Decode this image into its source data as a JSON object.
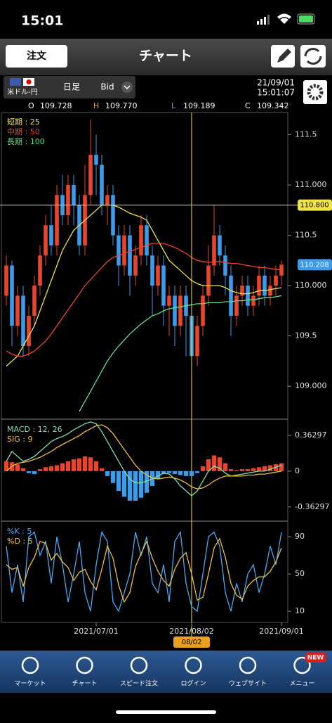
{
  "status_bar": {
    "time": "15:01"
  },
  "header": {
    "order_button": "注文",
    "title": "チャート"
  },
  "instrument": {
    "pair": "米ドル-円",
    "timeframe": "日足",
    "side": "Bid",
    "date": "21/09/01",
    "time": "15:01:07"
  },
  "ohlc": [
    {
      "label": "O",
      "value": "109.728"
    },
    {
      "label": "H",
      "value": "109.770"
    },
    {
      "label": "L",
      "value": "109.189"
    },
    {
      "label": "C",
      "value": "109.342"
    }
  ],
  "chart_data": [
    {
      "type": "candlestick",
      "up_color": "#e8452c",
      "down_color": "#3d9be9",
      "xlim": [
        -0.5,
        49.5
      ],
      "ylim": [
        108.68,
        111.72
      ],
      "xticks": [
        {
          "value": 16,
          "label": "2021/07/01"
        },
        {
          "value": 33,
          "label": "2021/08/02"
        },
        {
          "value": 49,
          "label": "2021/09/01"
        }
      ],
      "yticks": [
        {
          "value": 109,
          "label": "109.000"
        },
        109.5,
        {
          "value": 110,
          "label": "110.000"
        },
        110.5,
        {
          "value": 111,
          "label": "111.000"
        },
        111.5
      ],
      "candles": {
        "open": [
          109.9,
          110.2,
          109.6,
          109.9,
          109.4,
          109.7,
          110.0,
          110.3,
          110.6,
          110.4,
          110.9,
          110.7,
          111.0,
          110.8,
          110.4,
          110.9,
          111.3,
          111.2,
          110.8,
          110.9,
          110.5,
          110.2,
          110.5,
          110.1,
          110.3,
          110.6,
          110.3,
          110.0,
          110.2,
          109.8,
          109.9,
          109.6,
          109.9,
          109.7,
          109.3,
          109.6,
          109.9,
          110.2,
          110.5,
          110.3,
          110.1,
          109.7,
          109.9,
          110.0,
          109.8,
          109.9,
          110.1,
          109.9,
          110.0,
          110.1
        ],
        "high": [
          110.3,
          110.25,
          110.0,
          110.0,
          109.8,
          110.1,
          110.4,
          110.7,
          110.8,
          111.0,
          111.1,
          111.1,
          111.1,
          110.9,
          111.2,
          111.65,
          111.5,
          111.3,
          111.0,
          111.0,
          110.6,
          110.6,
          110.6,
          110.4,
          110.7,
          110.7,
          110.4,
          110.3,
          110.3,
          110.0,
          110.0,
          110.0,
          110.0,
          109.8,
          109.7,
          110.0,
          110.4,
          110.8,
          110.6,
          110.4,
          110.2,
          110.0,
          110.1,
          110.1,
          110.0,
          110.2,
          110.2,
          110.1,
          110.2,
          110.25
        ],
        "low": [
          109.8,
          109.4,
          109.5,
          109.3,
          109.3,
          109.6,
          109.9,
          110.2,
          110.3,
          110.3,
          110.6,
          110.6,
          110.6,
          110.3,
          110.3,
          110.8,
          110.9,
          110.7,
          110.6,
          110.4,
          110.0,
          110.1,
          109.9,
          110.0,
          110.2,
          110.2,
          109.7,
          109.9,
          109.6,
          109.5,
          109.4,
          109.5,
          109.3,
          109.15,
          109.2,
          109.5,
          109.8,
          110.1,
          110.2,
          109.9,
          109.5,
          109.6,
          109.8,
          109.7,
          109.7,
          109.8,
          109.8,
          109.8,
          109.9,
          110.0
        ],
        "close": [
          110.2,
          109.6,
          109.9,
          109.4,
          109.7,
          110.0,
          110.3,
          110.6,
          110.4,
          110.9,
          110.7,
          111.0,
          110.8,
          110.4,
          110.9,
          111.3,
          111.2,
          110.8,
          110.9,
          110.5,
          110.2,
          110.5,
          110.1,
          110.3,
          110.6,
          110.3,
          110.0,
          110.2,
          109.8,
          109.9,
          109.6,
          109.9,
          109.7,
          109.3,
          109.6,
          109.9,
          110.2,
          110.5,
          110.3,
          110.1,
          109.7,
          109.9,
          110.0,
          109.8,
          109.9,
          110.1,
          109.9,
          110.0,
          110.1,
          110.208
        ]
      },
      "series": [
        {
          "name": "短期 : 25",
          "color": "#f0e34a",
          "values": [
            109.2,
            109.25,
            109.3,
            109.4,
            109.5,
            109.6,
            109.75,
            109.9,
            110.05,
            110.2,
            110.35,
            110.45,
            110.55,
            110.6,
            110.65,
            110.7,
            110.75,
            110.8,
            110.8,
            110.8,
            110.78,
            110.75,
            110.72,
            110.7,
            110.68,
            110.65,
            110.55,
            110.45,
            110.35,
            110.25,
            110.2,
            110.15,
            110.1,
            110.05,
            110.02,
            110.0,
            110.0,
            110.0,
            110.0,
            109.98,
            109.95,
            109.93,
            109.92,
            109.92,
            109.93,
            109.95,
            109.95,
            109.96,
            109.97,
            109.98
          ]
        },
        {
          "name": "中期 : 50",
          "color": "#e8452c",
          "values": [
            109.35,
            109.32,
            109.3,
            109.3,
            109.32,
            109.35,
            109.4,
            109.45,
            109.52,
            109.6,
            109.68,
            109.76,
            109.84,
            109.92,
            110.0,
            110.06,
            110.12,
            110.18,
            110.24,
            110.28,
            110.3,
            110.32,
            110.34,
            110.36,
            110.38,
            110.4,
            110.42,
            110.42,
            110.42,
            110.4,
            110.38,
            110.35,
            110.32,
            110.28,
            110.25,
            110.24,
            110.23,
            110.24,
            110.24,
            110.23,
            110.22,
            110.22,
            110.21,
            110.2,
            110.19,
            110.18,
            110.18,
            110.17,
            110.16,
            110.16
          ]
        },
        {
          "name": "長期 : 100",
          "color": "#5fe08a",
          "values": [
            null,
            null,
            null,
            null,
            null,
            null,
            null,
            null,
            null,
            null,
            null,
            null,
            null,
            108.75,
            108.85,
            108.95,
            109.05,
            109.15,
            109.25,
            109.33,
            109.4,
            109.46,
            109.52,
            109.57,
            109.62,
            109.66,
            109.7,
            109.72,
            109.75,
            109.77,
            109.78,
            109.79,
            109.8,
            109.81,
            109.82,
            109.82,
            109.83,
            109.83,
            109.83,
            109.84,
            109.84,
            109.85,
            109.85,
            109.86,
            109.86,
            109.87,
            109.88,
            109.88,
            109.89,
            109.9
          ]
        }
      ],
      "crosshair": {
        "price": {
          "value": 110.8,
          "label": "110.800"
        },
        "x": 33,
        "date_label": "08/02",
        "color": "#f0e34a"
      },
      "last_price": {
        "value": 110.208,
        "label": "110.208",
        "color": "#3d9be9"
      }
    },
    {
      "type": "macd",
      "ylim": [
        -0.5,
        0.52
      ],
      "yticks": [
        -0.36297,
        0,
        0.36297
      ],
      "histogram": {
        "pos_color": "#e8452c",
        "neg_color": "#3d9be9",
        "values": [
          0.1,
          0.09,
          0.07,
          0.03,
          -0.02,
          -0.03,
          0.02,
          0.04,
          0.05,
          0.06,
          0.08,
          0.1,
          0.12,
          0.13,
          0.15,
          0.14,
          0.1,
          0.03,
          -0.05,
          -0.12,
          -0.2,
          -0.26,
          -0.3,
          -0.3,
          -0.27,
          -0.22,
          -0.15,
          -0.08,
          -0.03,
          -0.02,
          -0.03,
          -0.04,
          -0.05,
          -0.05,
          -0.02,
          0.05,
          0.12,
          0.16,
          0.14,
          0.08,
          0.02,
          0.01,
          0.02,
          0.02,
          0.03,
          0.04,
          0.05,
          0.06,
          0.07,
          0.08
        ]
      },
      "series": [
        {
          "name": "MACD : 12, 26",
          "color": "#7fe0b0",
          "values": [
            0.1,
            0.2,
            0.15,
            0.1,
            0.12,
            0.15,
            0.2,
            0.25,
            0.3,
            0.33,
            0.35,
            0.38,
            0.42,
            0.45,
            0.48,
            0.5,
            0.48,
            0.4,
            0.3,
            0.2,
            0.1,
            0.0,
            -0.08,
            -0.12,
            -0.12,
            -0.1,
            -0.08,
            -0.05,
            -0.02,
            -0.03,
            -0.08,
            -0.15,
            -0.2,
            -0.25,
            -0.2,
            -0.1,
            0.0,
            0.05,
            0.03,
            -0.02,
            -0.05,
            -0.04,
            -0.03,
            -0.02,
            -0.01,
            0.0,
            0.0,
            0.02,
            0.04,
            0.06
          ]
        },
        {
          "name": "SIG : 9",
          "color": "#f0c040",
          "values": [
            0.0,
            0.05,
            0.08,
            0.09,
            0.1,
            0.12,
            0.14,
            0.17,
            0.2,
            0.24,
            0.27,
            0.3,
            0.33,
            0.36,
            0.4,
            0.43,
            0.46,
            0.47,
            0.44,
            0.38,
            0.3,
            0.22,
            0.14,
            0.06,
            0.0,
            -0.04,
            -0.07,
            -0.08,
            -0.07,
            -0.06,
            -0.07,
            -0.09,
            -0.12,
            -0.16,
            -0.18,
            -0.17,
            -0.14,
            -0.1,
            -0.07,
            -0.05,
            -0.05,
            -0.05,
            -0.05,
            -0.04,
            -0.04,
            -0.03,
            -0.03,
            -0.02,
            -0.01,
            0.0
          ]
        }
      ]
    },
    {
      "type": "line",
      "ylim": [
        -2,
        106
      ],
      "yticks": [
        10,
        50,
        90
      ],
      "series": [
        {
          "name": "%K : 5",
          "color": "#4aa8f0",
          "values": [
            80,
            30,
            60,
            20,
            90,
            95,
            70,
            85,
            40,
            90,
            60,
            20,
            50,
            85,
            30,
            10,
            60,
            95,
            85,
            20,
            10,
            30,
            50,
            95,
            70,
            90,
            40,
            30,
            60,
            20,
            85,
            95,
            40,
            15,
            10,
            50,
            90,
            95,
            80,
            30,
            10,
            40,
            20,
            50,
            60,
            30,
            50,
            80,
            60,
            95
          ]
        },
        {
          "name": "%D : 5",
          "color": "#f0c040",
          "values": [
            60,
            55,
            57,
            37,
            57,
            68,
            85,
            83,
            65,
            72,
            63,
            57,
            43,
            52,
            55,
            42,
            33,
            55,
            80,
            67,
            38,
            20,
            30,
            58,
            72,
            85,
            67,
            53,
            43,
            37,
            55,
            67,
            73,
            50,
            22,
            25,
            50,
            78,
            88,
            68,
            40,
            27,
            23,
            37,
            43,
            47,
            47,
            53,
            63,
            78
          ]
        }
      ]
    }
  ],
  "nav": [
    {
      "label": "マーケット"
    },
    {
      "label": "チャート"
    },
    {
      "label": "スピード注文"
    },
    {
      "label": "ログイン"
    },
    {
      "label": "ウェブサイト"
    },
    {
      "label": "メニュー",
      "badge": "NEW"
    }
  ]
}
